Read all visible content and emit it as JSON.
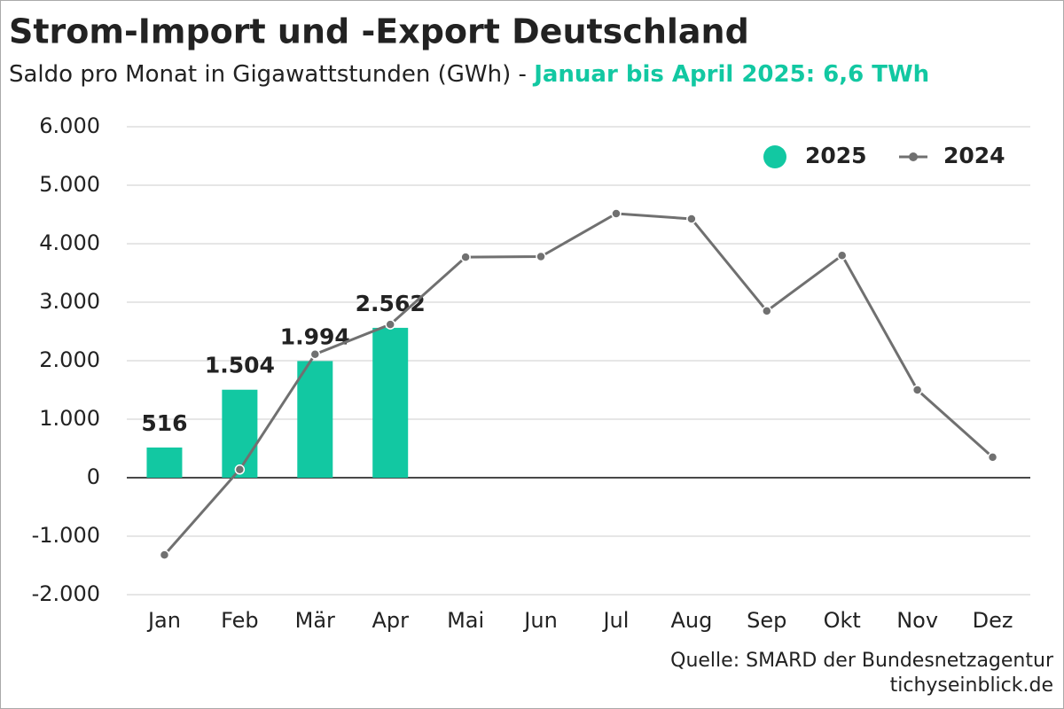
{
  "chart_data": {
    "type": "bar-line",
    "title": "Strom-Import und -Export Deutschland",
    "subtitle": "Saldo pro Monat in Gigawattstunden (GWh) - ",
    "subtitle_highlight": "Januar bis April 2025: 6,6 TWh",
    "source": "Quelle: SMARD der Bundesnetzagentur",
    "publisher": "tichyseinblick.de",
    "categories": [
      "Jan",
      "Feb",
      "Mär",
      "Apr",
      "Mai",
      "Jun",
      "Jul",
      "Aug",
      "Sep",
      "Okt",
      "Nov",
      "Dez"
    ],
    "series": [
      {
        "name": "2025",
        "type": "bar",
        "color": "#12c8a2",
        "values": [
          516,
          1504,
          1994,
          2562,
          null,
          null,
          null,
          null,
          null,
          null,
          null,
          null
        ],
        "value_labels": [
          "516",
          "1.504",
          "1.994",
          "2.562",
          null,
          null,
          null,
          null,
          null,
          null,
          null,
          null
        ]
      },
      {
        "name": "2024",
        "type": "line",
        "color": "#707070",
        "values": [
          -1320,
          140,
          2110,
          2620,
          3770,
          3780,
          4515,
          4425,
          2850,
          3800,
          1500,
          350
        ]
      }
    ],
    "ylim": [
      -2000,
      6000
    ],
    "yticks": [
      {
        "value": -2000,
        "label": "-2.000"
      },
      {
        "value": -1000,
        "label": "-1.000"
      },
      0,
      {
        "value": 1000,
        "label": "1.000"
      },
      {
        "value": 2000,
        "label": "2.000"
      },
      {
        "value": 3000,
        "label": "3.000"
      },
      {
        "value": 4000,
        "label": "4.000"
      },
      {
        "value": 5000,
        "label": "5.000"
      },
      {
        "value": 6000,
        "label": "6.000"
      }
    ],
    "grid": true,
    "legend": "top-right"
  }
}
